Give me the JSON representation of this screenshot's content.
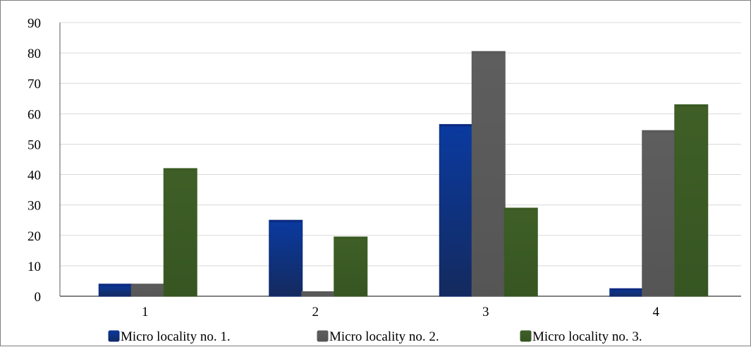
{
  "chart_data": {
    "type": "bar",
    "categories": [
      "1",
      "2",
      "3",
      "4"
    ],
    "series": [
      {
        "name": "Micro locality no. 1.",
        "values": [
          4,
          25,
          56.5,
          2.5
        ],
        "color": "#0d2a80"
      },
      {
        "name": "Micro locality no. 2.",
        "values": [
          4,
          1.5,
          80.5,
          54.5
        ],
        "color": "#595959"
      },
      {
        "name": "Micro locality no. 3.",
        "values": [
          42,
          19.5,
          29,
          63
        ],
        "color": "#3a5a24"
      }
    ],
    "ylim": [
      0,
      90
    ],
    "yticks": [
      0,
      10,
      20,
      30,
      40,
      50,
      60,
      70,
      80,
      90
    ],
    "grid": true,
    "legend_position": "bottom",
    "title": "",
    "xlabel": "",
    "ylabel": ""
  }
}
